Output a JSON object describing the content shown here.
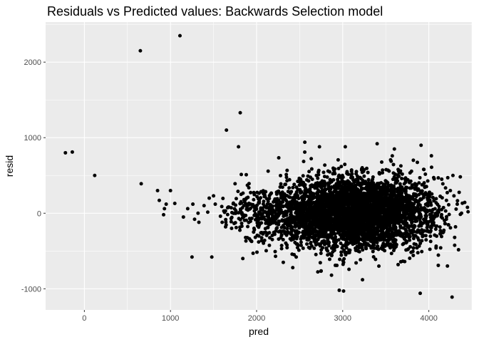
{
  "chart_data": {
    "type": "scatter",
    "title": "Residuals vs Predicted values: Backwards Selection model",
    "xlabel": "pred",
    "ylabel": "resid",
    "xlim": [
      -450,
      4500
    ],
    "ylim": [
      -1280,
      2530
    ],
    "x_ticks": [
      0,
      1000,
      2000,
      3000,
      4000
    ],
    "x_tick_labels": [
      "0",
      "1000",
      "2000",
      "3000",
      "4000"
    ],
    "y_ticks": [
      -1000,
      0,
      1000,
      2000
    ],
    "y_tick_labels": [
      "-1000",
      "0",
      "1000",
      "2000"
    ],
    "grid": true,
    "legend": "none",
    "colors": {
      "panel": "#ebebeb",
      "grid": "#ffffff",
      "point": "#000000"
    },
    "points": [
      {
        "x": -220,
        "y": 800
      },
      {
        "x": -140,
        "y": 810
      },
      {
        "x": 120,
        "y": 500
      },
      {
        "x": 650,
        "y": 2150
      },
      {
        "x": 1110,
        "y": 2350
      },
      {
        "x": 660,
        "y": 390
      },
      {
        "x": 850,
        "y": 300
      },
      {
        "x": 1000,
        "y": 300
      },
      {
        "x": 870,
        "y": 170
      },
      {
        "x": 950,
        "y": 120
      },
      {
        "x": 1050,
        "y": 130
      },
      {
        "x": 930,
        "y": 60
      },
      {
        "x": 920,
        "y": -20
      },
      {
        "x": 1150,
        "y": -50
      },
      {
        "x": 1200,
        "y": 60
      },
      {
        "x": 1260,
        "y": 120
      },
      {
        "x": 1320,
        "y": 0
      },
      {
        "x": 1330,
        "y": -120
      },
      {
        "x": 1280,
        "y": -80
      },
      {
        "x": 1390,
        "y": 100
      },
      {
        "x": 1450,
        "y": 200
      },
      {
        "x": 1500,
        "y": 230
      },
      {
        "x": 1520,
        "y": 120
      },
      {
        "x": 1580,
        "y": -40
      },
      {
        "x": 1640,
        "y": -180
      },
      {
        "x": 1600,
        "y": -120
      },
      {
        "x": 1250,
        "y": -580
      },
      {
        "x": 1480,
        "y": -580
      },
      {
        "x": 1650,
        "y": 1100
      },
      {
        "x": 1810,
        "y": 1330
      },
      {
        "x": 1790,
        "y": 880
      },
      {
        "x": 1750,
        "y": 390
      },
      {
        "x": 1820,
        "y": 250
      },
      {
        "x": 1880,
        "y": 510
      },
      {
        "x": 1840,
        "y": -600
      },
      {
        "x": 1710,
        "y": -200
      },
      {
        "x": 2560,
        "y": 940
      },
      {
        "x": 2730,
        "y": 880
      },
      {
        "x": 3030,
        "y": 880
      },
      {
        "x": 3400,
        "y": 920
      },
      {
        "x": 3600,
        "y": 850
      },
      {
        "x": 3910,
        "y": 900
      },
      {
        "x": 4030,
        "y": 760
      },
      {
        "x": 3940,
        "y": 580
      },
      {
        "x": 4150,
        "y": 450
      },
      {
        "x": 4220,
        "y": 470
      },
      {
        "x": 4280,
        "y": 500
      },
      {
        "x": 4250,
        "y": 300
      },
      {
        "x": 4330,
        "y": 120
      },
      {
        "x": 4380,
        "y": 0
      },
      {
        "x": 4310,
        "y": -180
      },
      {
        "x": 4300,
        "y": -320
      },
      {
        "x": 4170,
        "y": -250
      },
      {
        "x": 4110,
        "y": -690
      },
      {
        "x": 3900,
        "y": -1060
      },
      {
        "x": 4270,
        "y": -1110
      },
      {
        "x": 2960,
        "y": -1020
      },
      {
        "x": 3010,
        "y": -1030
      },
      {
        "x": 3230,
        "y": -880
      },
      {
        "x": 2870,
        "y": -820
      },
      {
        "x": 3420,
        "y": -700
      },
      {
        "x": 3720,
        "y": -640
      },
      {
        "x": 2420,
        "y": -720
      },
      {
        "x": 2310,
        "y": -650
      },
      {
        "x": 2220,
        "y": -570
      }
    ],
    "clusters": [
      {
        "cx": 3130,
        "cy": 0,
        "sx": 370,
        "sy": 230,
        "n": 3200
      },
      {
        "cx": 2450,
        "cy": 0,
        "sx": 260,
        "sy": 200,
        "n": 450
      },
      {
        "cx": 3750,
        "cy": 0,
        "sx": 250,
        "sy": 240,
        "n": 400
      },
      {
        "cx": 2050,
        "cy": -20,
        "sx": 170,
        "sy": 170,
        "n": 140
      },
      {
        "cx": 1750,
        "cy": 30,
        "sx": 150,
        "sy": 130,
        "n": 40
      }
    ]
  }
}
